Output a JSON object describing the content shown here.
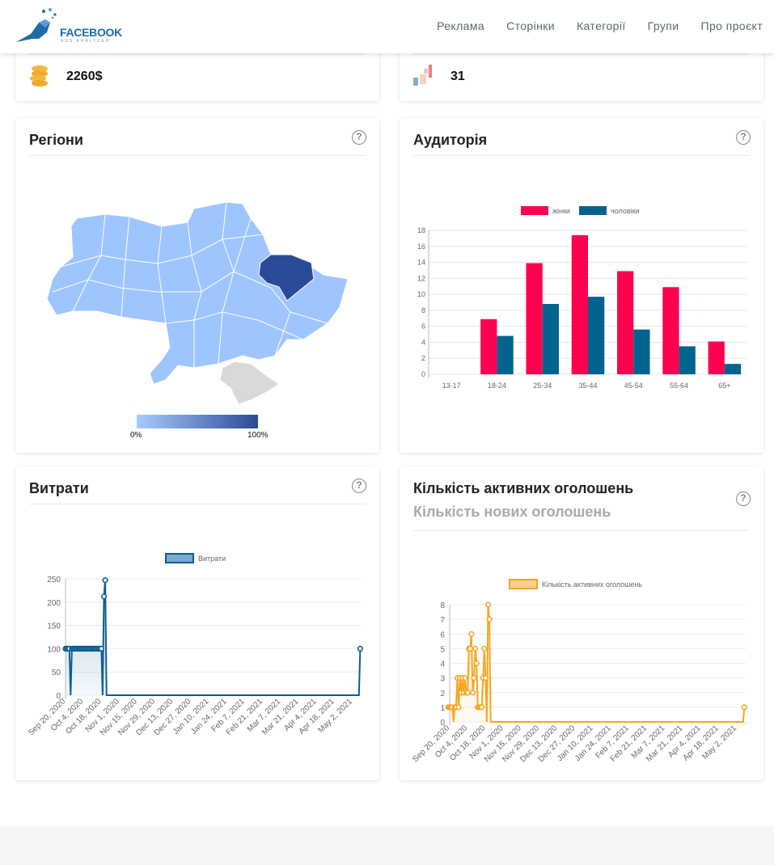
{
  "header": {
    "logo_text": "FACEBOOK",
    "logo_subtext": "ADS ANALYZER",
    "nav": [
      "Реклама",
      "Сторінки",
      "Категорії",
      "Групи",
      "Про проєкт"
    ]
  },
  "stats": {
    "spend": {
      "icon": "coins-icon",
      "value": "2260$"
    },
    "ads": {
      "icon": "megaphone-icon",
      "value": "31"
    }
  },
  "regions": {
    "title": "Регіони",
    "help": "?",
    "legend_min": "0%",
    "legend_max": "100%",
    "colors": {
      "low": "#9ec5fe",
      "high": "#2a4b97",
      "none": "#d9d9d9"
    },
    "highlighted_region": "Харківська область"
  },
  "audience": {
    "title": "Аудиторія",
    "help": "?",
    "chart_data": {
      "type": "bar",
      "categories": [
        "13-17",
        "18-24",
        "25-34",
        "35-44",
        "45-54",
        "55-64",
        "65+"
      ],
      "series": [
        {
          "name": "жінки",
          "color": "#ff0050",
          "values": [
            0,
            6.9,
            13.9,
            17.4,
            12.9,
            10.9,
            4.1
          ]
        },
        {
          "name": "чоловіки",
          "color": "#02638e",
          "values": [
            0,
            4.8,
            8.8,
            9.7,
            5.6,
            3.5,
            1.3
          ]
        }
      ],
      "yticks": [
        "0",
        "2",
        "4",
        "6",
        "8",
        "10",
        "12",
        "14",
        "16",
        "18"
      ],
      "ylim": [
        0,
        18
      ],
      "legend": "top"
    }
  },
  "spend": {
    "title": "Витрати",
    "help": "?",
    "chart_data": {
      "type": "line",
      "series_name": "Витрати",
      "color": "#0b5f95",
      "fill": "#7aa9c9",
      "start": "2020-09-20",
      "daily": [
        100,
        100,
        100,
        100,
        0,
        100,
        100,
        100,
        100,
        100,
        100,
        100,
        100,
        100,
        100,
        100,
        100,
        100,
        100,
        100,
        100,
        100,
        100,
        100,
        100,
        100,
        100,
        100,
        100,
        0,
        212,
        247,
        0
      ],
      "tail": [
        {
          "date": "2021-05-07",
          "value": 0
        },
        {
          "date": "2021-05-08",
          "value": 100
        }
      ],
      "end": "2021-05-09",
      "yticks": [
        "0",
        "50",
        "100",
        "150",
        "200",
        "250"
      ],
      "ylim": [
        0,
        250
      ],
      "xticks": [
        "Sep 20, 2020",
        "Oct 4, 2020",
        "Oct 18, 2020",
        "Nov 1, 2020",
        "Nov 15, 2020",
        "Nov 29, 2020",
        "Dec 13, 2020",
        "Dec 27, 2020",
        "Jan 10, 2021",
        "Jan 24, 2021",
        "Feb 7, 2021",
        "Feb 21, 2021",
        "Mar 7, 2021",
        "Mar 21, 2021",
        "Apr 4, 2021",
        "Apr 18, 2021",
        "May 2, 2021"
      ],
      "legend": "top"
    }
  },
  "ads": {
    "title": "Кількість активних оголошень",
    "subtitle": "Кількість нових оголошень",
    "help": "?",
    "chart_data": {
      "type": "line",
      "series_name": "Кількість активних оголошень",
      "color": "#f5a623",
      "fill": "#f8d08a",
      "start": "2020-09-19",
      "daily": [
        1,
        1,
        1,
        1,
        0,
        1,
        1,
        3,
        1,
        3,
        2,
        3,
        2,
        3,
        2,
        2,
        5,
        5,
        6,
        2,
        3,
        5,
        4,
        1,
        1,
        1,
        1,
        3,
        5,
        3,
        0,
        8,
        7,
        0
      ],
      "tail": [
        {
          "date": "2021-05-07",
          "value": 0
        },
        {
          "date": "2021-05-08",
          "value": 1
        }
      ],
      "end": "2021-05-09",
      "yticks": [
        "0",
        "1",
        "2",
        "3",
        "4",
        "5",
        "6",
        "7",
        "8"
      ],
      "ylim": [
        0,
        8
      ],
      "xticks": [
        "Sep 20, 2020",
        "Oct 4, 2020",
        "Oct 18, 2020",
        "Nov 1, 2020",
        "Nov 15, 2020",
        "Nov 29, 2020",
        "Dec 13, 2020",
        "Dec 27, 2020",
        "Jan 10, 2021",
        "Jan 24, 2021",
        "Feb 7, 2021",
        "Feb 21, 2021",
        "Mar 7, 2021",
        "Mar 21, 2021",
        "Apr 4, 2021",
        "Apr 18, 2021",
        "May 2, 2021"
      ],
      "legend": "top"
    }
  }
}
